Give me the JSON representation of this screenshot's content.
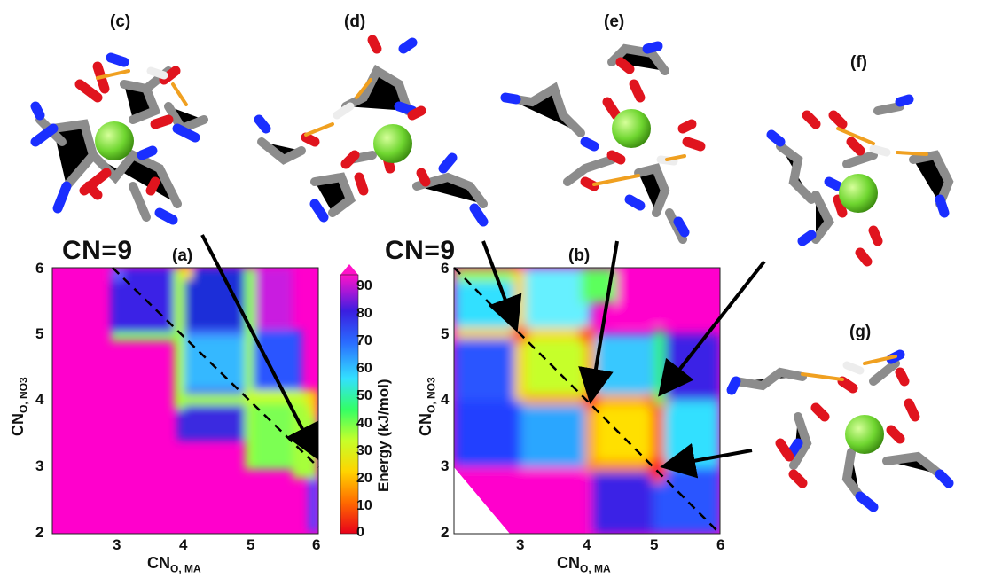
{
  "figure": {
    "panel_labels": {
      "a": "(a)",
      "b": "(b)",
      "c": "(c)",
      "d": "(d)",
      "e": "(e)",
      "f": "(f)",
      "g": "(g)"
    },
    "cn_labels": {
      "left": "CN=9",
      "right": "CN=9"
    }
  },
  "colorbar": {
    "title": "Energy (kJ/mol)",
    "ticks": [
      "0",
      "10",
      "20",
      "30",
      "40",
      "50",
      "60",
      "70",
      "80",
      "90"
    ]
  },
  "chart_data": [
    {
      "type": "heatmap",
      "panel": "(a)",
      "xlabel_main": "CN",
      "xlabel_sub": "O, MA",
      "ylabel_main": "CN",
      "ylabel_sub": "O, NO3",
      "xlim": [
        2,
        6
      ],
      "ylim": [
        2,
        6
      ],
      "xticks": [
        "3",
        "4",
        "5",
        "6"
      ],
      "yticks": [
        "2",
        "3",
        "4",
        "5",
        "6"
      ],
      "colorbar_range": [
        0,
        95
      ],
      "annotation": "dashed line CN=9 from (3,6) to (6,3)"
    },
    {
      "type": "heatmap",
      "panel": "(b)",
      "xlabel_main": "CN",
      "xlabel_sub": "O, MA",
      "ylabel_main": "CN",
      "ylabel_sub": "O, NO3",
      "xlim": [
        2,
        6
      ],
      "ylim": [
        2,
        6
      ],
      "xticks": [
        "3",
        "4",
        "5",
        "6"
      ],
      "yticks": [
        "2",
        "3",
        "4",
        "5",
        "6"
      ],
      "colorbar_range": [
        0,
        95
      ],
      "annotation": "dashed line CN=9 from (2,6) to (6,2)"
    }
  ]
}
